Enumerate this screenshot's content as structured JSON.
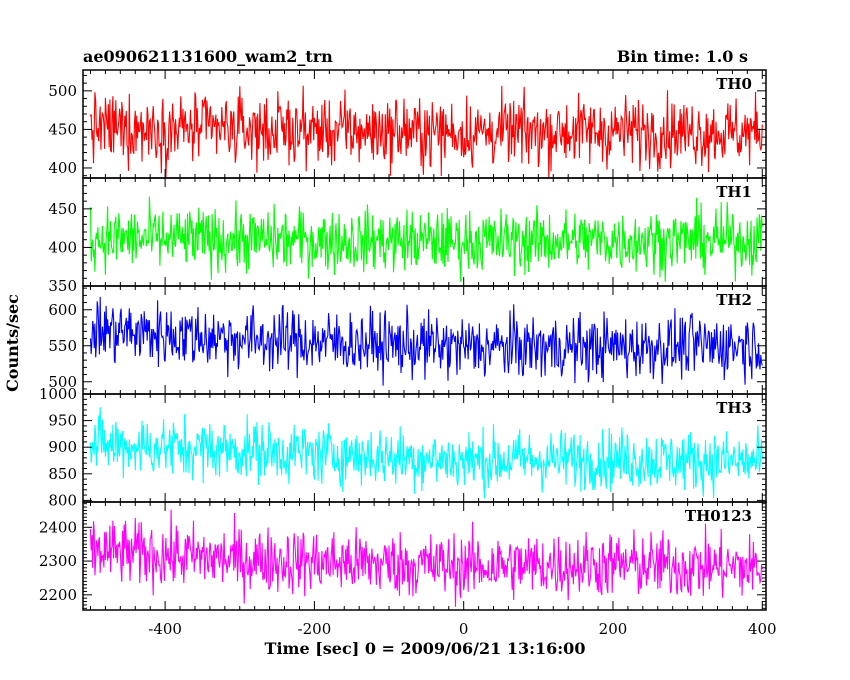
{
  "chart_data": {
    "type": "line",
    "title_left": "ae090621131600_wam2_trn",
    "title_right": "Bin time: 1.0 s",
    "xlabel": "Time [sec] 0 = 2009/06/21 13:16:00",
    "ylabel": "Counts/sec",
    "xlim": [
      -510,
      405
    ],
    "x_range": [
      -500,
      400
    ],
    "bin_time": 1.0,
    "x_ticks": [
      -400,
      -200,
      0,
      200,
      400
    ],
    "panels": [
      {
        "name": "TH0",
        "color": "#ff0000",
        "ylim": [
          387,
          527
        ],
        "y_ticks": [
          400,
          450,
          500
        ],
        "mean": 448,
        "spread": 22,
        "trend": [
          [
            -500,
            452
          ],
          [
            -300,
            450
          ],
          [
            0,
            446
          ],
          [
            200,
            448
          ],
          [
            400,
            446
          ]
        ]
      },
      {
        "name": "TH1",
        "color": "#00ff00",
        "ylim": [
          350,
          490
        ],
        "y_ticks": [
          350,
          400,
          450
        ],
        "mean": 410,
        "spread": 20,
        "trend": [
          [
            -500,
            412
          ],
          [
            -300,
            410
          ],
          [
            0,
            408
          ],
          [
            200,
            409
          ],
          [
            400,
            410
          ]
        ]
      },
      {
        "name": "TH2",
        "color": "#0000ff",
        "ylim": [
          483,
          633
        ],
        "y_ticks": [
          500,
          550,
          600
        ],
        "mean": 555,
        "spread": 22,
        "trend": [
          [
            -500,
            572
          ],
          [
            -300,
            560
          ],
          [
            0,
            548
          ],
          [
            200,
            548
          ],
          [
            400,
            552
          ]
        ]
      },
      {
        "name": "TH3",
        "color": "#00ffff",
        "ylim": [
          797,
          1000
        ],
        "y_ticks": [
          800,
          850,
          900,
          950,
          1000
        ],
        "mean": 880,
        "spread": 28,
        "trend": [
          [
            -500,
            905
          ],
          [
            -300,
            895
          ],
          [
            0,
            875
          ],
          [
            200,
            878
          ],
          [
            400,
            872
          ]
        ]
      },
      {
        "name": "TH0123",
        "color": "#ff00ff",
        "ylim": [
          2155,
          2475
        ],
        "y_ticks": [
          2200,
          2300,
          2400
        ],
        "mean": 2300,
        "spread": 48,
        "trend": [
          [
            -500,
            2330
          ],
          [
            -300,
            2305
          ],
          [
            0,
            2285
          ],
          [
            200,
            2290
          ],
          [
            400,
            2280
          ]
        ]
      }
    ]
  }
}
